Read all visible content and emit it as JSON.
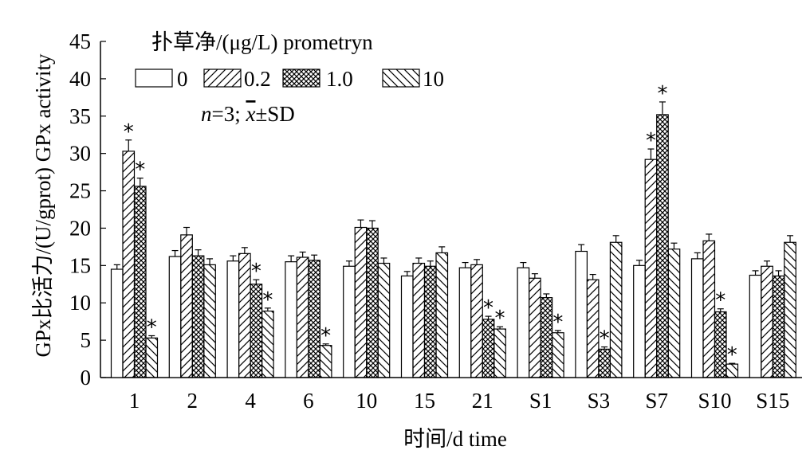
{
  "chart_data": {
    "type": "bar",
    "xlabel": "时间/d time",
    "ylabel": "GPx比活力/(U/gprot) GPx activity",
    "ylim": [
      0,
      45
    ],
    "yticks": [
      0,
      5,
      10,
      15,
      20,
      25,
      30,
      35,
      40,
      45
    ],
    "grid": false,
    "legend": {
      "title": "扑草净/(μg/L) prometryn",
      "placement": "top-left",
      "stat_prefix": "=3; ",
      "stat_suffix": "±SD",
      "stat_n": "n",
      "stat_x": "x"
    },
    "categories": [
      "1",
      "2",
      "4",
      "6",
      "10",
      "15",
      "21",
      "S1",
      "S3",
      "S7",
      "S10",
      "S15"
    ],
    "series": [
      {
        "name": "0",
        "pattern": "none",
        "values": [
          14.5,
          16.2,
          15.6,
          15.5,
          14.9,
          13.6,
          14.7,
          14.7,
          16.9,
          15.0,
          15.9,
          13.7
        ],
        "errors": [
          0.6,
          0.8,
          0.7,
          0.8,
          0.7,
          0.6,
          0.7,
          0.7,
          0.9,
          0.7,
          0.8,
          0.6
        ],
        "significant": [
          false,
          false,
          false,
          false,
          false,
          false,
          false,
          false,
          false,
          false,
          false,
          false
        ]
      },
      {
        "name": "0.2",
        "pattern": "diagonal",
        "values": [
          30.3,
          19.1,
          16.6,
          16.1,
          20.1,
          15.3,
          15.1,
          13.3,
          13.1,
          29.2,
          18.3,
          14.9
        ],
        "errors": [
          1.5,
          1.0,
          0.8,
          0.7,
          1.0,
          0.7,
          0.7,
          0.6,
          0.7,
          1.4,
          0.9,
          0.7
        ],
        "significant": [
          true,
          false,
          false,
          false,
          false,
          false,
          false,
          false,
          false,
          true,
          false,
          false
        ]
      },
      {
        "name": "1.0",
        "pattern": "crosshatch",
        "values": [
          25.6,
          16.3,
          12.5,
          15.7,
          20.0,
          14.9,
          7.8,
          10.7,
          3.8,
          35.2,
          8.8,
          13.6
        ],
        "errors": [
          1.1,
          0.8,
          0.6,
          0.7,
          1.0,
          0.7,
          0.4,
          0.5,
          0.3,
          1.7,
          0.4,
          0.7
        ],
        "significant": [
          true,
          false,
          true,
          false,
          false,
          false,
          true,
          false,
          true,
          true,
          true,
          false
        ]
      },
      {
        "name": "10",
        "pattern": "back-diagonal",
        "values": [
          5.3,
          15.1,
          8.9,
          4.3,
          15.3,
          16.7,
          6.5,
          6.0,
          18.1,
          17.2,
          1.8,
          18.1
        ],
        "errors": [
          0.3,
          0.8,
          0.4,
          0.2,
          0.7,
          0.8,
          0.3,
          0.3,
          0.9,
          0.8,
          0.1,
          0.9
        ],
        "significant": [
          true,
          false,
          true,
          true,
          false,
          false,
          true,
          true,
          false,
          false,
          true,
          false
        ]
      }
    ]
  }
}
